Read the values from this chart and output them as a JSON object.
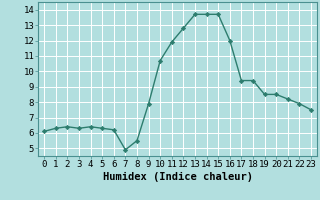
{
  "x": [
    0,
    1,
    2,
    3,
    4,
    5,
    6,
    7,
    8,
    9,
    10,
    11,
    12,
    13,
    14,
    15,
    16,
    17,
    18,
    19,
    20,
    21,
    22,
    23
  ],
  "y": [
    6.1,
    6.3,
    6.4,
    6.3,
    6.4,
    6.3,
    6.2,
    4.9,
    5.5,
    7.9,
    10.7,
    11.9,
    12.8,
    13.7,
    13.7,
    13.7,
    12.0,
    9.4,
    9.4,
    8.5,
    8.5,
    8.2,
    7.9,
    7.5
  ],
  "line_color": "#2d7d6e",
  "marker": "D",
  "markersize": 2.2,
  "linewidth": 1.0,
  "bg_color": "#b2dfdf",
  "grid_color": "#ffffff",
  "xlabel": "Humidex (Indice chaleur)",
  "xlabel_fontsize": 7.5,
  "tick_fontsize": 6.5,
  "xlim": [
    -0.5,
    23.5
  ],
  "ylim": [
    4.5,
    14.5
  ],
  "yticks": [
    5,
    6,
    7,
    8,
    9,
    10,
    11,
    12,
    13,
    14
  ],
  "xticks": [
    0,
    1,
    2,
    3,
    4,
    5,
    6,
    7,
    8,
    9,
    10,
    11,
    12,
    13,
    14,
    15,
    16,
    17,
    18,
    19,
    20,
    21,
    22,
    23
  ]
}
